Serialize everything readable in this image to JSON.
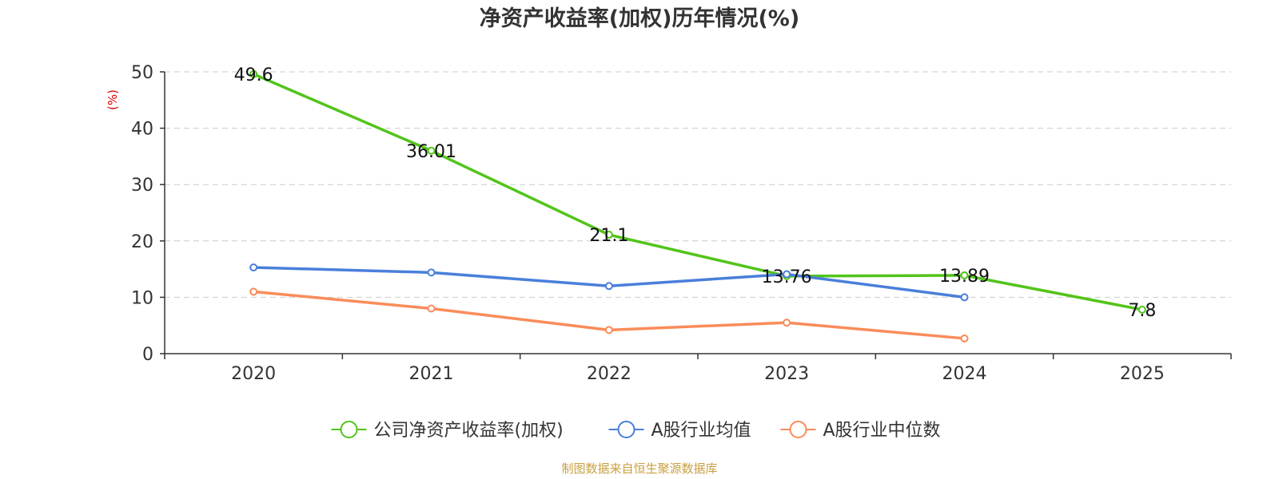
{
  "chart_data": {
    "type": "line",
    "title": "净资产收益率(加权)历年情况(%)",
    "ylabel": "(%)",
    "xlabel": "",
    "categories": [
      "2020",
      "2021",
      "2022",
      "2023",
      "2024",
      "2025"
    ],
    "ylim": [
      0,
      50
    ],
    "yticks": [
      0,
      10,
      20,
      30,
      40,
      50
    ],
    "grid": true,
    "legend_position": "bottom",
    "series": [
      {
        "name": "公司净资产收益率(加权)",
        "color": "#52c41a",
        "values": [
          49.6,
          36.01,
          21.1,
          13.76,
          13.89,
          7.8
        ],
        "labels": [
          "49.6",
          "36.01",
          "21.1",
          "13.76",
          "13.89",
          "7.8"
        ]
      },
      {
        "name": "A股行业均值",
        "color": "#4a7fdb",
        "values": [
          15.3,
          14.4,
          12.0,
          14.1,
          10.0,
          null
        ]
      },
      {
        "name": "A股行业中位数",
        "color": "#fa8c5a",
        "values": [
          11.0,
          8.0,
          4.2,
          5.5,
          2.7,
          null
        ]
      }
    ],
    "ylabel_color": "#e60000"
  },
  "source": {
    "text": "制图数据来自恒生聚源数据库",
    "color": "#c9a040"
  }
}
